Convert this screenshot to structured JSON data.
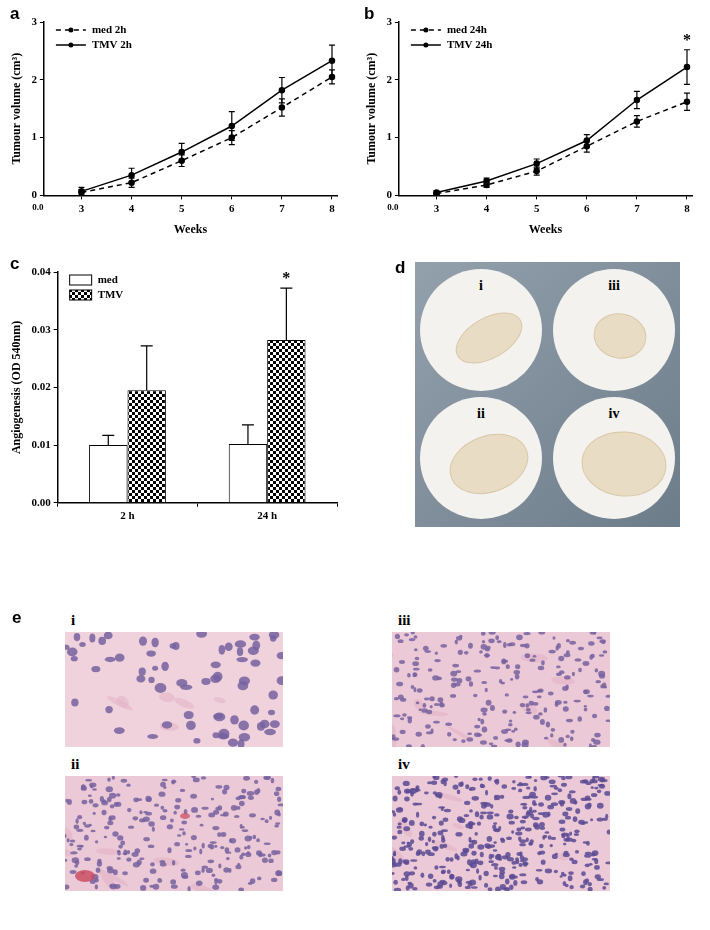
{
  "chart_data": [
    {
      "panel": "a",
      "type": "line",
      "x_label": "Weeks",
      "y_label": "Tumour volume (cm³)",
      "x": [
        3,
        4,
        5,
        6,
        7,
        8
      ],
      "series": [
        {
          "name": "med 2h",
          "color": "#000000",
          "line_style": "dashed",
          "marker": "circle",
          "values": [
            0.05,
            0.22,
            0.6,
            1.0,
            1.52,
            2.05
          ],
          "errors": [
            0.05,
            0.08,
            0.1,
            0.12,
            0.15,
            0.12
          ]
        },
        {
          "name": "TMV 2h",
          "color": "#000000",
          "line_style": "solid",
          "marker": "circle",
          "values": [
            0.07,
            0.35,
            0.75,
            1.2,
            1.82,
            2.33
          ],
          "errors": [
            0.07,
            0.12,
            0.15,
            0.25,
            0.22,
            0.27
          ]
        }
      ],
      "xlim": [
        2.25,
        8.1
      ],
      "xticks": [
        3,
        4,
        5,
        6,
        7,
        8
      ],
      "ylim": [
        0,
        3
      ],
      "yticks": [
        0,
        1,
        2,
        3
      ],
      "annotations": [
        {
          "text": "0.0"
        }
      ],
      "legend": "upper left",
      "grid": false
    },
    {
      "panel": "b",
      "type": "line",
      "x_label": "Weeks",
      "y_label": "Tumour volume (cm³)",
      "x": [
        3,
        4,
        5,
        6,
        7,
        8
      ],
      "series": [
        {
          "name": "med 24h",
          "color": "#000000",
          "line_style": "dashed",
          "marker": "circle",
          "values": [
            0.03,
            0.18,
            0.42,
            0.85,
            1.28,
            1.62
          ],
          "errors": [
            0.02,
            0.04,
            0.07,
            0.1,
            0.1,
            0.15
          ]
        },
        {
          "name": "TMV 24h",
          "color": "#000000",
          "line_style": "solid",
          "marker": "circle",
          "values": [
            0.05,
            0.25,
            0.55,
            0.95,
            1.65,
            2.22
          ],
          "errors": [
            0.03,
            0.05,
            0.08,
            0.1,
            0.15,
            0.3
          ]
        }
      ],
      "xlim": [
        2.25,
        8.1
      ],
      "xticks": [
        3,
        4,
        5,
        6,
        7,
        8
      ],
      "ylim": [
        0,
        3
      ],
      "yticks": [
        0,
        1,
        2,
        3
      ],
      "annotations": [
        {
          "text": "0.0"
        },
        {
          "text": "*",
          "x": 8
        }
      ],
      "legend": "upper left",
      "grid": false
    },
    {
      "panel": "c",
      "type": "bar",
      "y_label": "Angiogenesis (OD 540nm)",
      "categories": [
        "2 h",
        "24 h"
      ],
      "series": [
        {
          "name": "med",
          "color": "#ffffff",
          "values": [
            0.01,
            0.0102
          ],
          "errors": [
            0.0017,
            0.0033
          ]
        },
        {
          "name": "TMV",
          "color": "#000000",
          "values": [
            0.0195,
            0.0282
          ],
          "errors": [
            0.0077,
            0.009
          ]
        }
      ],
      "ylim": [
        0,
        0.04
      ],
      "yticks": [
        {
          "value": 0,
          "label": "0.00"
        },
        {
          "value": 0.01,
          "label": "0.01"
        },
        {
          "value": 0.02,
          "label": "0.02"
        },
        {
          "value": 0.03,
          "label": "0.03"
        },
        {
          "value": 0.04,
          "label": "0.04"
        }
      ],
      "annotations": [
        {
          "text": "*",
          "category": "24 h",
          "series": "TMV"
        }
      ],
      "legend": "upper left",
      "grid": false
    }
  ],
  "images": [
    {
      "panel": "d",
      "labels": [
        "i",
        "ii",
        "iii",
        "iv"
      ]
    },
    {
      "panel": "e",
      "labels": [
        "i",
        "ii",
        "iii",
        "iv"
      ]
    }
  ]
}
